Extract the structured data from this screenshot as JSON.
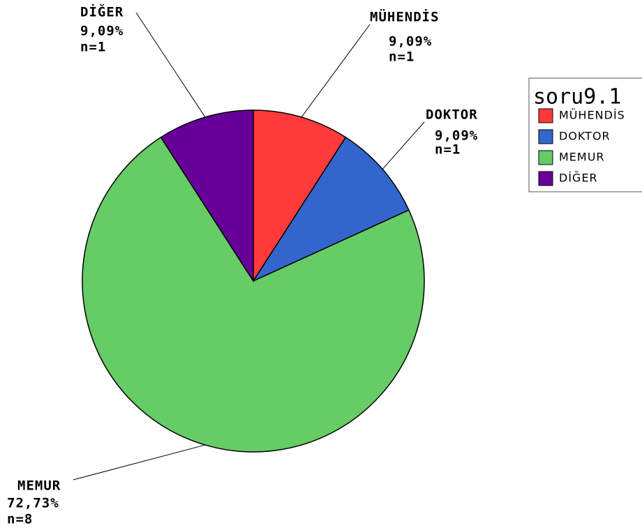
{
  "chart_data": {
    "type": "pie",
    "legend_title": "soru9.1",
    "categories": [
      "MÜHENDİS",
      "DOKTOR",
      "MEMUR",
      "DİĞER"
    ],
    "values": [
      9.09,
      9.09,
      72.73,
      9.09
    ],
    "value_labels": [
      "9,09%",
      "9,09%",
      "72,73%",
      "9,09%"
    ],
    "counts": [
      1,
      1,
      8,
      1
    ],
    "count_labels": [
      "n=1",
      "n=1",
      "n=8",
      "n=1"
    ],
    "colors": [
      "#ff3a3a",
      "#3366cc",
      "#66cc66",
      "#660099"
    ],
    "legend": "top-right"
  }
}
